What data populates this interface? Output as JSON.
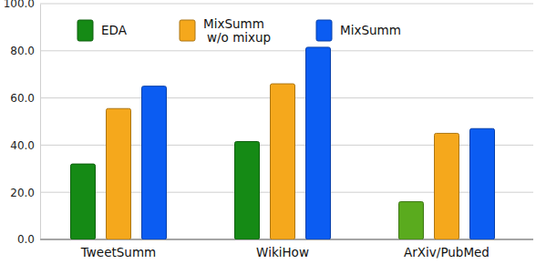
{
  "chart_data": {
    "type": "bar",
    "categories": [
      "TweetSumm",
      "WikiHow",
      "ArXiv/PubMed"
    ],
    "series": [
      {
        "name": "EDA",
        "colors": [
          "#158a15",
          "#158a15",
          "#5aab1e"
        ],
        "values": [
          32,
          41.5,
          16
        ]
      },
      {
        "name": "MixSumm w/o mixup",
        "color": "#f5a81c",
        "values": [
          55.5,
          66,
          45
        ]
      },
      {
        "name": "MixSumm",
        "color": "#0b5cf2",
        "values": [
          65,
          81.5,
          47
        ]
      }
    ],
    "ylim": [
      0,
      100
    ],
    "yticks": [
      {
        "value": 0,
        "label": "0.0"
      },
      {
        "value": 20,
        "label": "20.0"
      },
      {
        "value": 40,
        "label": "40.0"
      },
      {
        "value": 60,
        "label": "60.0"
      },
      {
        "value": 80,
        "label": "80.0"
      },
      {
        "value": 100,
        "label": "100.0"
      }
    ],
    "grid": true,
    "legend": "top"
  }
}
